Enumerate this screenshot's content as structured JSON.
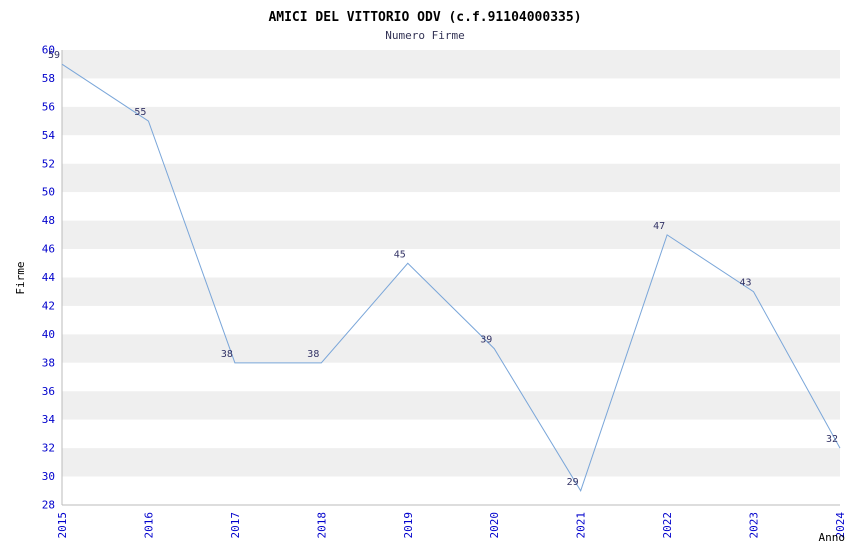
{
  "chart_data": {
    "type": "line",
    "title": "AMICI DEL VITTORIO ODV (c.f.91104000335)",
    "subtitle": "Numero Firme",
    "xlabel": "Anno",
    "ylabel": "Firme",
    "x": [
      2015,
      2016,
      2017,
      2018,
      2019,
      2020,
      2021,
      2022,
      2023,
      2024
    ],
    "values": [
      59,
      55,
      38,
      38,
      45,
      39,
      29,
      47,
      43,
      32
    ],
    "ylim": [
      28,
      60
    ],
    "ytick_step": 2,
    "grid": "horizontal-bands",
    "legend_position": "none",
    "colors": {
      "line": "#7aa6d9",
      "tick_labels": "#0000cc",
      "data_labels": "#333366",
      "band": "#efefef",
      "axis_line": "#bbbbbb",
      "title": "#000000",
      "subtitle": "#333355"
    }
  }
}
